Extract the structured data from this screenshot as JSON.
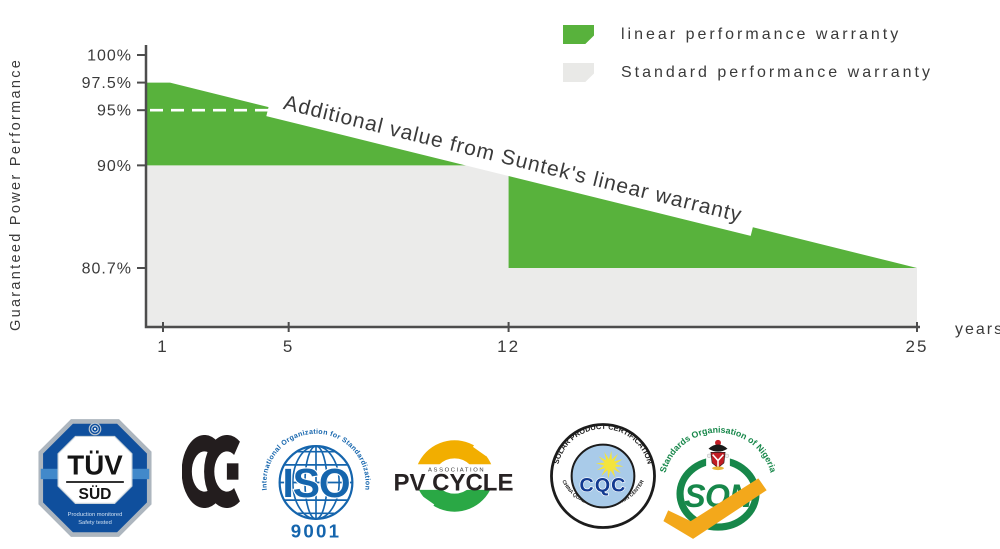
{
  "chart_data": {
    "type": "area",
    "title": "",
    "annotation": "Additional value from Suntek's linear warranty",
    "ylabel": "Guaranteed Power Performance",
    "xlabel": "years",
    "x_ticks": [
      1,
      5,
      12,
      25
    ],
    "y_ticks": [
      "100%",
      "97.5%",
      "95%",
      "90%",
      "80.7%"
    ],
    "y_tick_values": [
      100,
      97.5,
      95,
      90,
      80.7
    ],
    "xlim": [
      1,
      25
    ],
    "ylim": [
      80.7,
      100
    ],
    "grid": false,
    "legend_position": "top-right",
    "axis_color": "#4d4d4d",
    "dashed_reference": {
      "value": 95,
      "color": "#ffffff"
    },
    "series": [
      {
        "name": "linear performance warranty",
        "color": "#58b23c",
        "points": [
          {
            "year": 1,
            "value": 97.5
          },
          {
            "year": 25,
            "value": 80.7
          }
        ]
      },
      {
        "name": "Standard performance warranty",
        "color": "#ebebea",
        "points": [
          {
            "year": 1,
            "value": 90
          },
          {
            "year": 12,
            "value": 90
          },
          {
            "year": 12,
            "value": 80.7
          },
          {
            "year": 25,
            "value": 80.7
          }
        ]
      }
    ]
  },
  "legend": {
    "items": [
      {
        "label": "linear performance warranty",
        "color": "#58b23c"
      },
      {
        "label": "Standard performance warranty",
        "color": "#e9e9e7"
      }
    ]
  },
  "logos": {
    "tuv": {
      "top_label": "TÜV",
      "bottom_label": "SÜD",
      "tagline1": "Production monitored",
      "tagline2": "Safety tested"
    },
    "ce": {
      "mark": "CE"
    },
    "iso": {
      "arc_text": "International Organization for Standardization",
      "center_label": "ISO",
      "number": "9001"
    },
    "pvcycle": {
      "association": "ASSOCIATION",
      "name": "PV CYCLE"
    },
    "cqc": {
      "arc_top": "SOLAR PRODUCT CERTIFICATION",
      "arc_bottom": "CHINA QUALITY CERTIFICATION CENTER",
      "center_label": "CQC"
    },
    "son": {
      "arc_text": "Standards Organisation of Nigeria",
      "center_label": "SON"
    }
  }
}
